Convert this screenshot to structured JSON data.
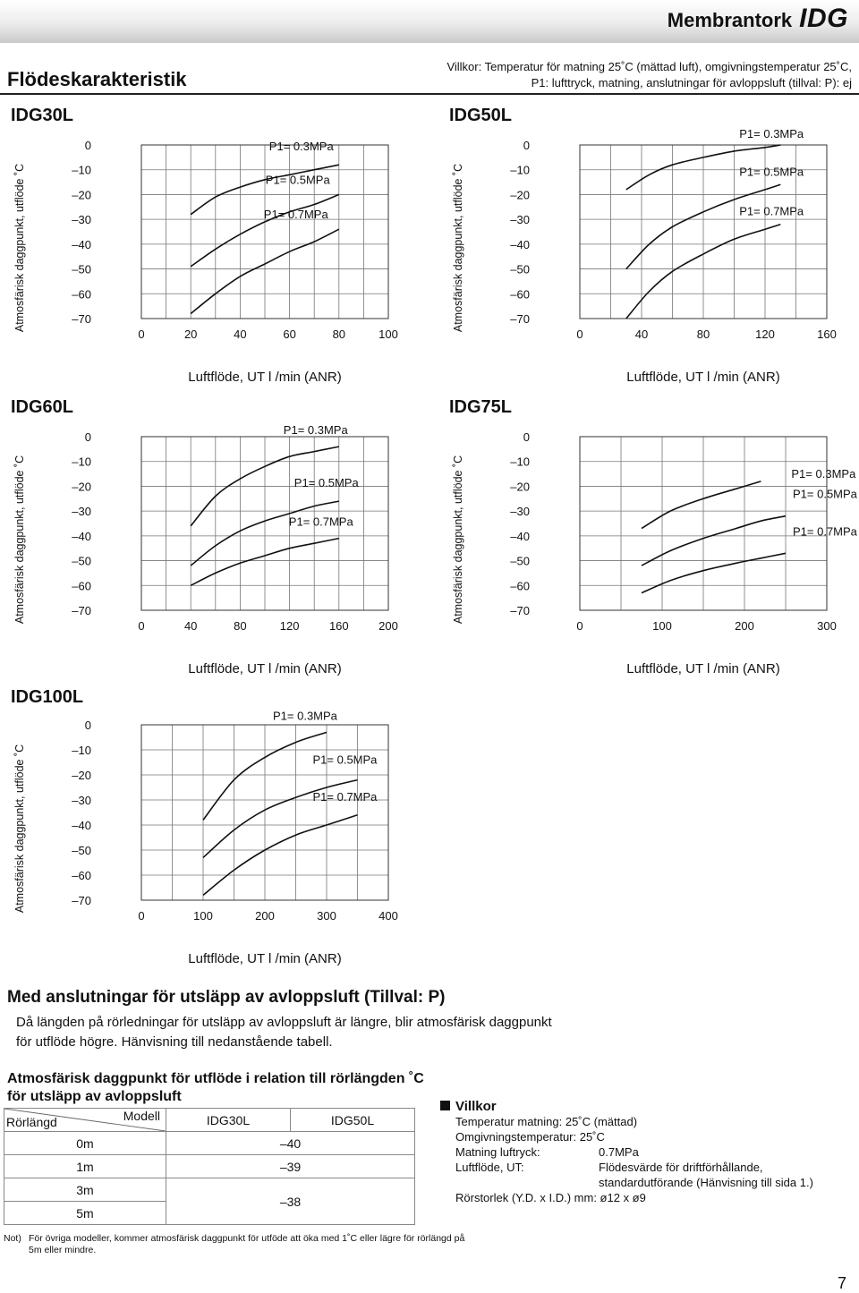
{
  "header": {
    "product": "Membrantork",
    "series": "IDG"
  },
  "section": {
    "title": "Flödeskarakteristik",
    "conditions_line1": "Villkor: Temperatur för matning 25˚C (mättad luft), omgivningstemperatur 25˚C,",
    "conditions_line2": "P1: lufttryck, matning, anslutningar för avloppsluft (tillval: P): ej"
  },
  "chart_data": [
    {
      "model": "IDG30L",
      "type": "line",
      "ylabel": "Atmosfärisk daggpunkt, utflöde ˚C",
      "xlabel": "Luftflöde, UT l /min (ANR)",
      "ylim": [
        0,
        -70
      ],
      "yticks": [
        "0",
        "-10",
        "-20",
        "-30",
        "-40",
        "-50",
        "-60",
        "-70"
      ],
      "xlim": [
        0,
        100
      ],
      "xticks": [
        "0",
        "20",
        "40",
        "60",
        "80",
        "100"
      ],
      "series": [
        {
          "name": "P1= 0.3MPa",
          "x": [
            20,
            30,
            40,
            50,
            60,
            70,
            80
          ],
          "y": [
            -28,
            -21,
            -17,
            -14,
            -12,
            -10,
            -8
          ]
        },
        {
          "name": "P1= 0.5MPa",
          "x": [
            20,
            30,
            40,
            50,
            60,
            70,
            80
          ],
          "y": [
            -49,
            -42,
            -36,
            -31,
            -27,
            -24,
            -20
          ]
        },
        {
          "name": "P1= 0.7MPa",
          "x": [
            20,
            30,
            40,
            50,
            60,
            70,
            80
          ],
          "y": [
            -68,
            -60,
            -53,
            -48,
            -43,
            -39,
            -34
          ]
        }
      ]
    },
    {
      "model": "IDG50L",
      "type": "line",
      "ylabel": "Atmosfärisk daggpunkt, utflöde ˚C",
      "xlabel": "Luftflöde, UT l /min (ANR)",
      "ylim": [
        0,
        -70
      ],
      "yticks": [
        "0",
        "-10",
        "-20",
        "-30",
        "-40",
        "-50",
        "-60",
        "-70"
      ],
      "xlim": [
        0,
        160
      ],
      "xticks": [
        "0",
        "40",
        "80",
        "120",
        "160"
      ],
      "series": [
        {
          "name": "P1= 0.3MPa",
          "x": [
            30,
            45,
            60,
            80,
            100,
            120,
            130
          ],
          "y": [
            -18,
            -12,
            -8,
            -5,
            -2.5,
            -1,
            0
          ]
        },
        {
          "name": "P1= 0.5MPa",
          "x": [
            30,
            45,
            60,
            80,
            100,
            120,
            130
          ],
          "y": [
            -50,
            -40,
            -33,
            -27,
            -22,
            -18,
            -16
          ]
        },
        {
          "name": "P1= 0.7MPa",
          "x": [
            30,
            45,
            60,
            80,
            100,
            120,
            130
          ],
          "y": [
            -70,
            -59,
            -51,
            -44,
            -38,
            -34,
            -32
          ]
        }
      ]
    },
    {
      "model": "IDG60L",
      "type": "line",
      "ylabel": "Atmosfärisk daggpunkt, utflöde ˚C",
      "xlabel": "Luftflöde, UT l /min (ANR)",
      "ylim": [
        0,
        -70
      ],
      "yticks": [
        "0",
        "-10",
        "-20",
        "-30",
        "-40",
        "-50",
        "-60",
        "-70"
      ],
      "xlim": [
        0,
        200
      ],
      "xticks": [
        "0",
        "40",
        "80",
        "120",
        "160",
        "200"
      ],
      "series": [
        {
          "name": "P1= 0.3MPa",
          "x": [
            40,
            60,
            80,
            100,
            120,
            140,
            160
          ],
          "y": [
            -36,
            -24,
            -17,
            -12,
            -8,
            -6,
            -4
          ]
        },
        {
          "name": "P1= 0.5MPa",
          "x": [
            40,
            60,
            80,
            100,
            120,
            140,
            160
          ],
          "y": [
            -52,
            -44,
            -38,
            -34,
            -31,
            -28,
            -26
          ]
        },
        {
          "name": "P1= 0.7MPa",
          "x": [
            40,
            60,
            80,
            100,
            120,
            140,
            160
          ],
          "y": [
            -60,
            -55,
            -51,
            -48,
            -45,
            -43,
            -41
          ]
        }
      ]
    },
    {
      "model": "IDG75L",
      "type": "line",
      "ylabel": "Atmosfärisk daggpunkt, utflöde ˚C",
      "xlabel": "Luftflöde, UT l /min (ANR)",
      "ylim": [
        0,
        -70
      ],
      "yticks": [
        "0",
        "-10",
        "-20",
        "-30",
        "-40",
        "-50",
        "-60",
        "-70"
      ],
      "xlim": [
        0,
        300
      ],
      "xticks": [
        "0",
        "100",
        "200",
        "300"
      ],
      "series": [
        {
          "name": "P1= 0.3MPa",
          "x": [
            75,
            110,
            150,
            190,
            220
          ],
          "y": [
            -37,
            -30,
            -25,
            -21,
            -18
          ]
        },
        {
          "name": "P1= 0.5MPa",
          "x": [
            75,
            110,
            150,
            190,
            220,
            250
          ],
          "y": [
            -52,
            -46,
            -41,
            -37,
            -34,
            -32
          ]
        },
        {
          "name": "P1= 0.7MPa",
          "x": [
            75,
            110,
            150,
            190,
            220,
            250
          ],
          "y": [
            -63,
            -58,
            -54,
            -51,
            -49,
            -47
          ]
        }
      ]
    },
    {
      "model": "IDG100L",
      "type": "line",
      "ylabel": "Atmosfärisk daggpunkt, utflöde ˚C",
      "xlabel": "Luftflöde, UT l /min (ANR)",
      "ylim": [
        0,
        -70
      ],
      "yticks": [
        "0",
        "-10",
        "-20",
        "-30",
        "-40",
        "-50",
        "-60",
        "-70"
      ],
      "xlim": [
        0,
        400
      ],
      "xticks": [
        "0",
        "100",
        "200",
        "300",
        "400"
      ],
      "series": [
        {
          "name": "P1= 0.3MPa",
          "x": [
            100,
            150,
            200,
            250,
            300
          ],
          "y": [
            -38,
            -22,
            -13,
            -7,
            -3
          ]
        },
        {
          "name": "P1= 0.5MPa",
          "x": [
            100,
            150,
            200,
            250,
            300,
            350
          ],
          "y": [
            -53,
            -42,
            -34,
            -29,
            -25,
            -22
          ]
        },
        {
          "name": "P1= 0.7MPa",
          "x": [
            100,
            150,
            200,
            250,
            300,
            350
          ],
          "y": [
            -68,
            -58,
            -50,
            -44,
            -40,
            -36
          ]
        }
      ]
    }
  ],
  "option_section": {
    "heading": "Med anslutningar för utsläpp av avloppsluft (Tillval: P)",
    "body": "Då längden på rörledningar för utsläpp av avloppsluft är längre, blir atmosfärisk daggpunkt för utflöde högre. Hänvisning till nedanstående tabell."
  },
  "dew_table": {
    "title": "Atmosfärisk daggpunkt för utflöde i relation till rörlängden ˚C för utsläpp av avloppsluft",
    "corner_top": "Modell",
    "corner_bottom": "Rörlängd",
    "columns": [
      "IDG30L",
      "IDG50L"
    ],
    "rows": [
      {
        "length": "0m",
        "value": "–40"
      },
      {
        "length": "1m",
        "value": "–39"
      },
      {
        "length": "3m",
        "value": "–38"
      },
      {
        "length": "5m",
        "value": ""
      }
    ]
  },
  "note": {
    "label": "Not)",
    "text": "För övriga modeller, kommer atmosfärisk daggpunkt för utföde att öka med 1˚C eller lägre för rörlängd på 5m eller mindre."
  },
  "villkor": {
    "title": "Villkor",
    "line1": "Temperatur matning: 25˚C (mättad)",
    "line2": "Omgivningstemperatur: 25˚C",
    "rows": [
      {
        "key": "Matning luftryck:",
        "value": "0.7MPa"
      },
      {
        "key": "Luftflöde, UT:",
        "value": "Flödesvärde för driftförhållande, standardutförande (Hänvisning till sida 1.)"
      }
    ],
    "line_last": "Rörstorlek (Y.D. x I.D.) mm: ø12 x ø9"
  },
  "page_number": "7"
}
